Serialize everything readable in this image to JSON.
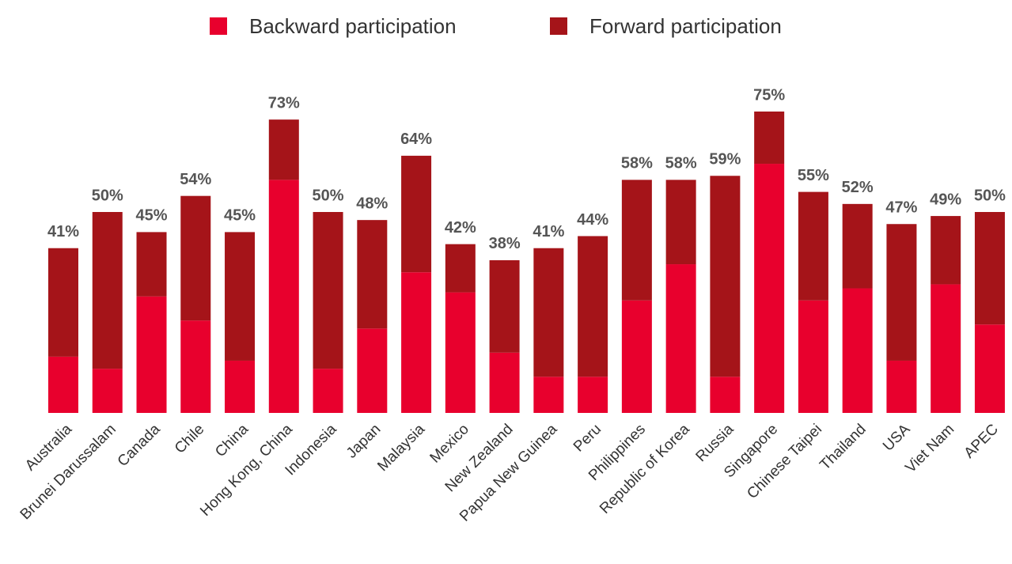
{
  "chart_data": {
    "type": "stacked_bar",
    "categories": [
      "Australia",
      "Brunei Darussalam",
      "Canada",
      "Chile",
      "China",
      "Hong Kong, China",
      "Indonesia",
      "Japan",
      "Malaysia",
      "Mexico",
      "New Zealand",
      "Papua New Guinea",
      "Peru",
      "Philippines",
      "Republic of Korea",
      "Russia",
      "Singapore",
      "Chinese Taipei",
      "Thailand",
      "USA",
      "Viet Nam",
      "APEC"
    ],
    "series": [
      {
        "name": "Backward participation",
        "color": "#e8002d",
        "values": [
          14,
          11,
          29,
          23,
          13,
          58,
          11,
          21,
          35,
          30,
          15,
          9,
          9,
          28,
          37,
          9,
          62,
          28,
          31,
          13,
          32,
          22
        ]
      },
      {
        "name": "Forward participation",
        "color": "#a51419",
        "values": [
          27,
          39,
          16,
          31,
          32,
          15,
          39,
          27,
          29,
          12,
          23,
          32,
          35,
          30,
          21,
          50,
          13,
          27,
          21,
          34,
          17,
          28
        ]
      }
    ],
    "total_labels": [
      "41%",
      "50%",
      "45%",
      "54%",
      "45%",
      "73%",
      "50%",
      "48%",
      "64%",
      "42%",
      "38%",
      "41%",
      "44%",
      "58%",
      "58%",
      "59%",
      "75%",
      "55%",
      "52%",
      "47%",
      "49%",
      "50%"
    ],
    "legend": "top"
  }
}
